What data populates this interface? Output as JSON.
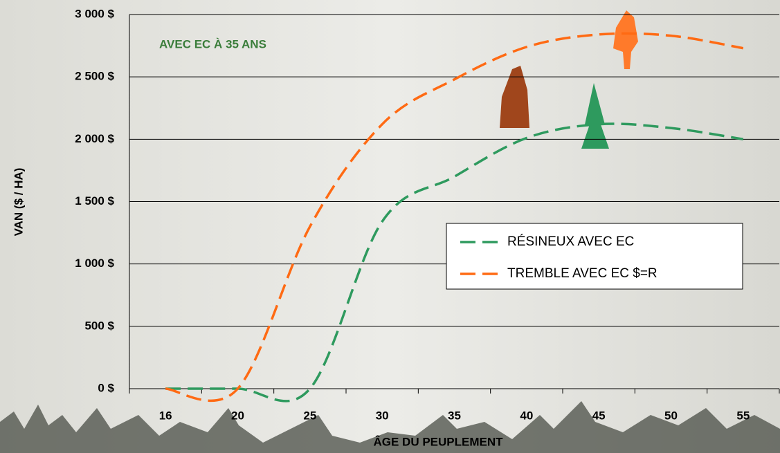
{
  "chart_data": {
    "type": "line",
    "title": "AVEC EC À 35 ANS",
    "x_label": "ÂGE DU PEUPLEMENT",
    "y_label": "VAN ($ / HA)",
    "categories": [
      "16",
      "20",
      "25",
      "30",
      "35",
      "40",
      "45",
      "50",
      "55"
    ],
    "series": [
      {
        "name": "RÉSINEUX AVEC EC",
        "color": "#2e9a5e",
        "values": [
          0,
          0,
          0,
          1340,
          1700,
          2010,
          2120,
          2090,
          2000
        ]
      },
      {
        "name": "TREMBLE AVEC EC $=R",
        "color": "#ff6a13",
        "values": [
          0,
          0,
          1300,
          2120,
          2480,
          2740,
          2840,
          2830,
          2730
        ]
      }
    ],
    "ylim": [
      0,
      3000
    ],
    "yticks": [
      {
        "value": 0,
        "label": "0 $"
      },
      {
        "value": 500,
        "label": "500 $"
      },
      {
        "value": 1000,
        "label": "1 000 $"
      },
      {
        "value": 1500,
        "label": "1 500 $"
      },
      {
        "value": 2000,
        "label": "2 000 $"
      },
      {
        "value": 2500,
        "label": "2 500 $"
      },
      {
        "value": 3000,
        "label": "3 000 $"
      }
    ],
    "grid": true,
    "line_style": "dashed",
    "legend": "center-right"
  }
}
